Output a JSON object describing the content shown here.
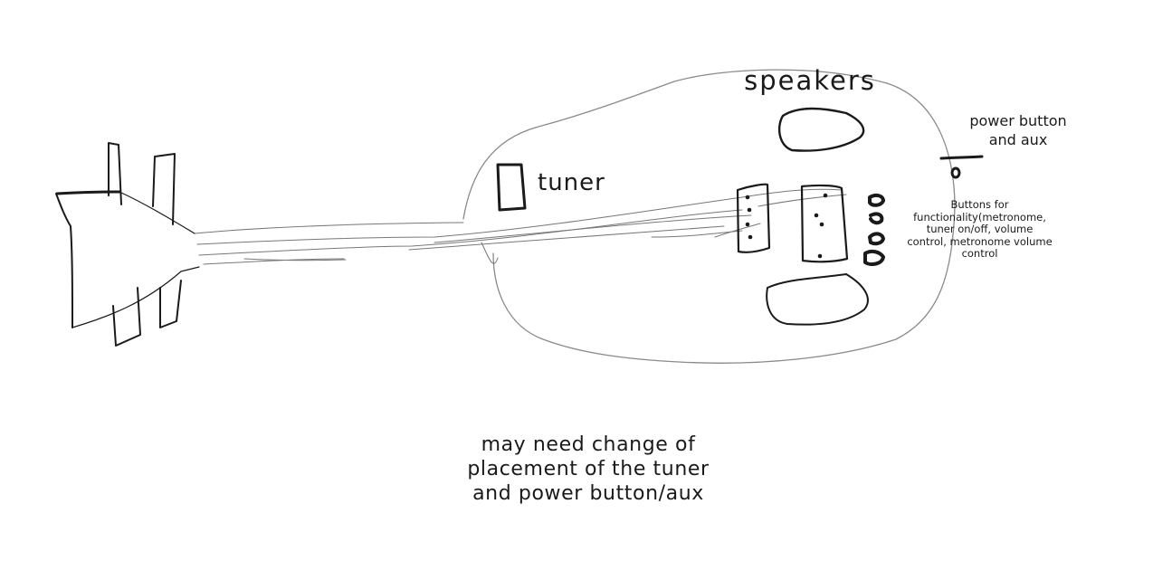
{
  "labels": {
    "speakers": "speakers",
    "tuner": "tuner",
    "power": "power button\nand aux",
    "buttons": "Buttons for\nfunctionality(metronome,\ntuner on/off, volume\ncontrol, metronome volume\ncontrol",
    "note": "may need change of\nplacement of the tuner\nand power button/aux"
  },
  "colors": {
    "ink": "#1a1a1a",
    "outline": "#8a8a8a",
    "string": "#777777"
  }
}
